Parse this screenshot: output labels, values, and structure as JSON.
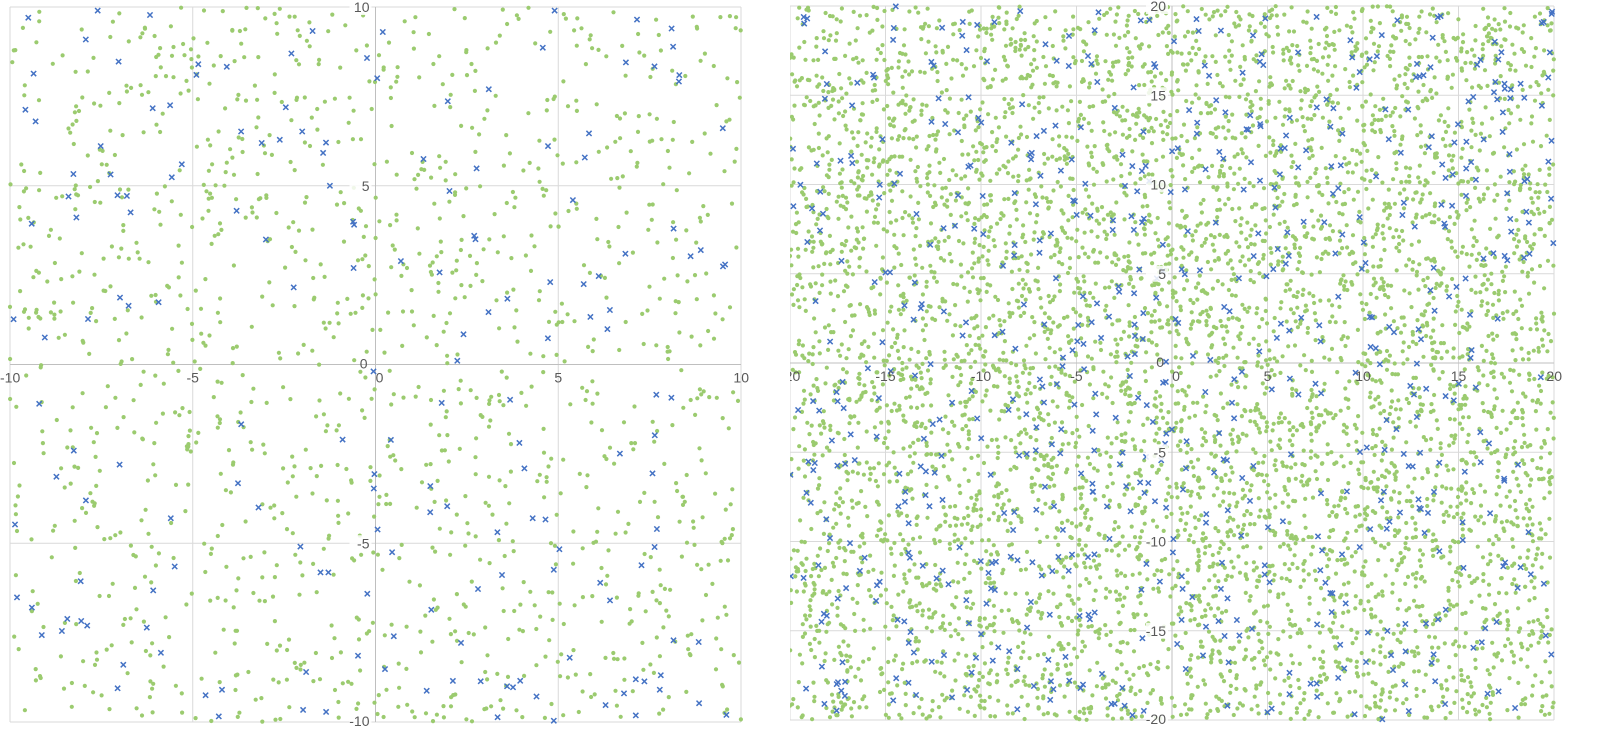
{
  "colors": {
    "background": "#ffffff",
    "grid": "#d9d9d9",
    "axis": "#bfbfbf",
    "tick_text": "#595959",
    "series_dot": "#9bcb6f",
    "series_cross": "#4472c4"
  },
  "chart_data": [
    {
      "type": "scatter",
      "title": "",
      "xlabel": "",
      "ylabel": "",
      "xlim": [
        -10,
        10
      ],
      "ylim": [
        -10,
        10
      ],
      "x_ticks": [
        "-10",
        "-5",
        "0",
        "5",
        "10"
      ],
      "y_ticks": [
        "-10",
        "-5",
        "0",
        "5",
        "10"
      ],
      "grid": true,
      "legend": "none",
      "series": [
        {
          "marker": "circle",
          "color": "#9bcb6f",
          "approx_count": 1400,
          "points": [
            [
              -9.2,
              9.6
            ],
            [
              -8.4,
              6.6
            ],
            [
              -7.7,
              7.3
            ],
            [
              -6.0,
              8.6
            ],
            [
              -4.6,
              9.0
            ],
            [
              -3.3,
              7.8
            ],
            [
              -1.8,
              8.9
            ],
            [
              -0.6,
              7.1
            ],
            [
              0.8,
              9.6
            ],
            [
              2.1,
              8.1
            ],
            [
              3.4,
              9.2
            ],
            [
              4.7,
              7.4
            ],
            [
              6.1,
              8.8
            ],
            [
              7.5,
              7.0
            ],
            [
              8.8,
              9.4
            ],
            [
              9.6,
              6.8
            ],
            [
              -9.5,
              4.1
            ],
            [
              -8.1,
              2.6
            ],
            [
              -6.9,
              3.9
            ],
            [
              -5.7,
              2.2
            ],
            [
              -4.4,
              3.6
            ],
            [
              -3.1,
              1.9
            ],
            [
              -1.5,
              2.8
            ],
            [
              -0.4,
              4.3
            ],
            [
              1.2,
              3.1
            ],
            [
              2.6,
              2.2
            ],
            [
              3.8,
              4.4
            ],
            [
              5.1,
              1.7
            ],
            [
              6.4,
              3.3
            ],
            [
              7.9,
              2.4
            ],
            [
              8.9,
              4.0
            ],
            [
              9.7,
              1.6
            ],
            [
              -9.1,
              -2.2
            ],
            [
              -7.8,
              -3.6
            ],
            [
              -6.6,
              -1.9
            ],
            [
              -5.2,
              -4.1
            ],
            [
              -3.9,
              -2.8
            ],
            [
              -2.4,
              -3.3
            ],
            [
              -1.0,
              -1.7
            ],
            [
              0.4,
              -3.9
            ],
            [
              1.9,
              -2.4
            ],
            [
              3.2,
              -4.2
            ],
            [
              4.6,
              -1.8
            ],
            [
              5.8,
              -3.1
            ],
            [
              7.1,
              -2.2
            ],
            [
              8.4,
              -3.7
            ],
            [
              9.5,
              -1.5
            ],
            [
              -9.4,
              -6.9
            ],
            [
              -8.0,
              -8.3
            ],
            [
              -6.7,
              -7.1
            ],
            [
              -5.3,
              -9.2
            ],
            [
              -4.1,
              -6.6
            ],
            [
              -2.7,
              -8.0
            ],
            [
              -1.2,
              -7.3
            ],
            [
              0.3,
              -9.1
            ],
            [
              1.7,
              -6.8
            ],
            [
              3.0,
              -8.6
            ],
            [
              4.4,
              -7.4
            ],
            [
              5.9,
              -9.3
            ],
            [
              7.2,
              -6.4
            ],
            [
              8.6,
              -8.1
            ],
            [
              9.6,
              -7.0
            ]
          ]
        },
        {
          "marker": "x",
          "color": "#4472c4",
          "approx_count": 180,
          "points": [
            [
              -9.5,
              9.7
            ],
            [
              -7.6,
              9.9
            ],
            [
              -4.9,
              8.1
            ],
            [
              -2.3,
              8.7
            ],
            [
              0.2,
              9.3
            ],
            [
              3.1,
              7.7
            ],
            [
              4.9,
              9.9
            ],
            [
              8.1,
              9.4
            ],
            [
              -9.3,
              6.8
            ],
            [
              -8.4,
              4.7
            ],
            [
              -5.3,
              5.6
            ],
            [
              -3.8,
              4.3
            ],
            [
              -0.6,
              2.7
            ],
            [
              2.7,
              3.6
            ],
            [
              5.4,
              4.6
            ],
            [
              8.9,
              3.2
            ],
            [
              -9.2,
              -1.1
            ],
            [
              -7.0,
              -2.8
            ],
            [
              -5.6,
              -4.3
            ],
            [
              -3.2,
              -4.0
            ],
            [
              -0.9,
              -2.1
            ],
            [
              1.5,
              -3.4
            ],
            [
              4.3,
              -4.3
            ],
            [
              7.7,
              -4.6
            ],
            [
              -9.4,
              -6.8
            ],
            [
              -6.9,
              -8.4
            ],
            [
              -4.2,
              -9.1
            ],
            [
              -1.9,
              -8.6
            ],
            [
              0.5,
              -7.6
            ],
            [
              3.6,
              -9.0
            ],
            [
              6.8,
              -9.2
            ],
            [
              9.6,
              -9.8
            ]
          ]
        }
      ]
    },
    {
      "type": "scatter",
      "title": "",
      "xlabel": "",
      "ylabel": "",
      "xlim": [
        -20,
        20
      ],
      "ylim": [
        -20,
        20
      ],
      "x_ticks": [
        "-20",
        "-15",
        "-10",
        "-5",
        "0",
        "5",
        "10",
        "15",
        "20"
      ],
      "y_ticks": [
        "-20",
        "-15",
        "-10",
        "-5",
        "0",
        "5",
        "10",
        "15",
        "20"
      ],
      "grid": true,
      "legend": "none",
      "series": [
        {
          "marker": "circle",
          "color": "#9bcb6f",
          "approx_count": 6000,
          "points": [
            [
              -18.6,
              18.2
            ],
            [
              -14.3,
              16.9
            ],
            [
              -9.8,
              17.6
            ],
            [
              -5.2,
              18.4
            ],
            [
              -1.1,
              16.3
            ],
            [
              3.7,
              17.8
            ],
            [
              8.4,
              16.1
            ],
            [
              12.9,
              18.5
            ],
            [
              17.6,
              16.8
            ],
            [
              -17.4,
              12.3
            ],
            [
              -12.8,
              10.6
            ],
            [
              -7.9,
              12.8
            ],
            [
              -3.6,
              11.1
            ],
            [
              1.2,
              12.6
            ],
            [
              5.8,
              10.4
            ],
            [
              10.1,
              12.2
            ],
            [
              14.7,
              10.9
            ],
            [
              18.9,
              12.4
            ],
            [
              -18.1,
              6.2
            ],
            [
              -13.5,
              4.4
            ],
            [
              -8.7,
              6.7
            ],
            [
              -4.3,
              3.2
            ],
            [
              0.6,
              5.9
            ],
            [
              4.9,
              3.6
            ],
            [
              9.3,
              6.1
            ],
            [
              13.8,
              4.2
            ],
            [
              18.2,
              5.8
            ],
            [
              -17.7,
              -2.1
            ],
            [
              -12.6,
              -3.9
            ],
            [
              -7.4,
              -1.7
            ],
            [
              -2.9,
              -4.2
            ],
            [
              1.8,
              -2.4
            ],
            [
              6.3,
              -4.6
            ],
            [
              10.8,
              -1.9
            ],
            [
              15.2,
              -3.7
            ],
            [
              19.1,
              -2.2
            ],
            [
              -18.4,
              -8.3
            ],
            [
              -13.9,
              -10.6
            ],
            [
              -9.1,
              -8.8
            ],
            [
              -4.6,
              -11.2
            ],
            [
              0.3,
              -9.4
            ],
            [
              5.1,
              -11.7
            ],
            [
              9.6,
              -8.6
            ],
            [
              14.1,
              -10.9
            ],
            [
              18.6,
              -9.1
            ],
            [
              -17.2,
              -15.6
            ],
            [
              -12.4,
              -17.3
            ],
            [
              -7.7,
              -15.1
            ],
            [
              -3.1,
              -17.8
            ],
            [
              1.6,
              -15.9
            ],
            [
              6.2,
              -18.1
            ],
            [
              10.9,
              -16.2
            ],
            [
              15.5,
              -17.6
            ],
            [
              19.3,
              -15.4
            ]
          ]
        },
        {
          "marker": "x",
          "color": "#4472c4",
          "approx_count": 700,
          "points": [
            [
              -19.1,
              19.3
            ],
            [
              -14.6,
              18.1
            ],
            [
              -9.3,
              19.1
            ],
            [
              -4.4,
              17.2
            ],
            [
              1.4,
              18.6
            ],
            [
              6.6,
              17.4
            ],
            [
              11.8,
              19.2
            ],
            [
              16.9,
              18.0
            ],
            [
              -16.8,
              11.6
            ],
            [
              -11.2,
              9.4
            ],
            [
              -6.1,
              13.3
            ],
            [
              -1.2,
              10.2
            ],
            [
              3.9,
              13.1
            ],
            [
              8.7,
              9.8
            ],
            [
              13.6,
              12.7
            ],
            [
              18.6,
              10.3
            ],
            [
              -17.9,
              1.2
            ],
            [
              -13.1,
              3.3
            ],
            [
              -8.2,
              0.8
            ],
            [
              -3.3,
              2.6
            ],
            [
              1.1,
              0.4
            ],
            [
              5.7,
              2.2
            ],
            [
              10.4,
              0.9
            ],
            [
              15.6,
              2.7
            ],
            [
              -18.7,
              -5.6
            ],
            [
              -12.9,
              -7.4
            ],
            [
              -7.6,
              -5.1
            ],
            [
              -2.4,
              -6.9
            ],
            [
              2.7,
              -5.4
            ],
            [
              7.8,
              -7.3
            ],
            [
              12.6,
              -5.8
            ],
            [
              17.4,
              -6.6
            ],
            [
              -17.5,
              -13.2
            ],
            [
              -11.7,
              -12.4
            ],
            [
              -6.4,
              -14.1
            ],
            [
              -1.6,
              -12.7
            ],
            [
              3.4,
              -14.4
            ],
            [
              8.4,
              -12.9
            ],
            [
              13.3,
              -14.6
            ],
            [
              18.1,
              -12.6
            ],
            [
              -18.2,
              -19.1
            ],
            [
              -13.4,
              -18.6
            ],
            [
              -8.1,
              -19.4
            ],
            [
              -2.6,
              -18.2
            ],
            [
              2.9,
              -19.2
            ],
            [
              7.6,
              -18.7
            ],
            [
              12.4,
              -19.5
            ],
            [
              17.1,
              -18.4
            ]
          ]
        }
      ]
    }
  ]
}
